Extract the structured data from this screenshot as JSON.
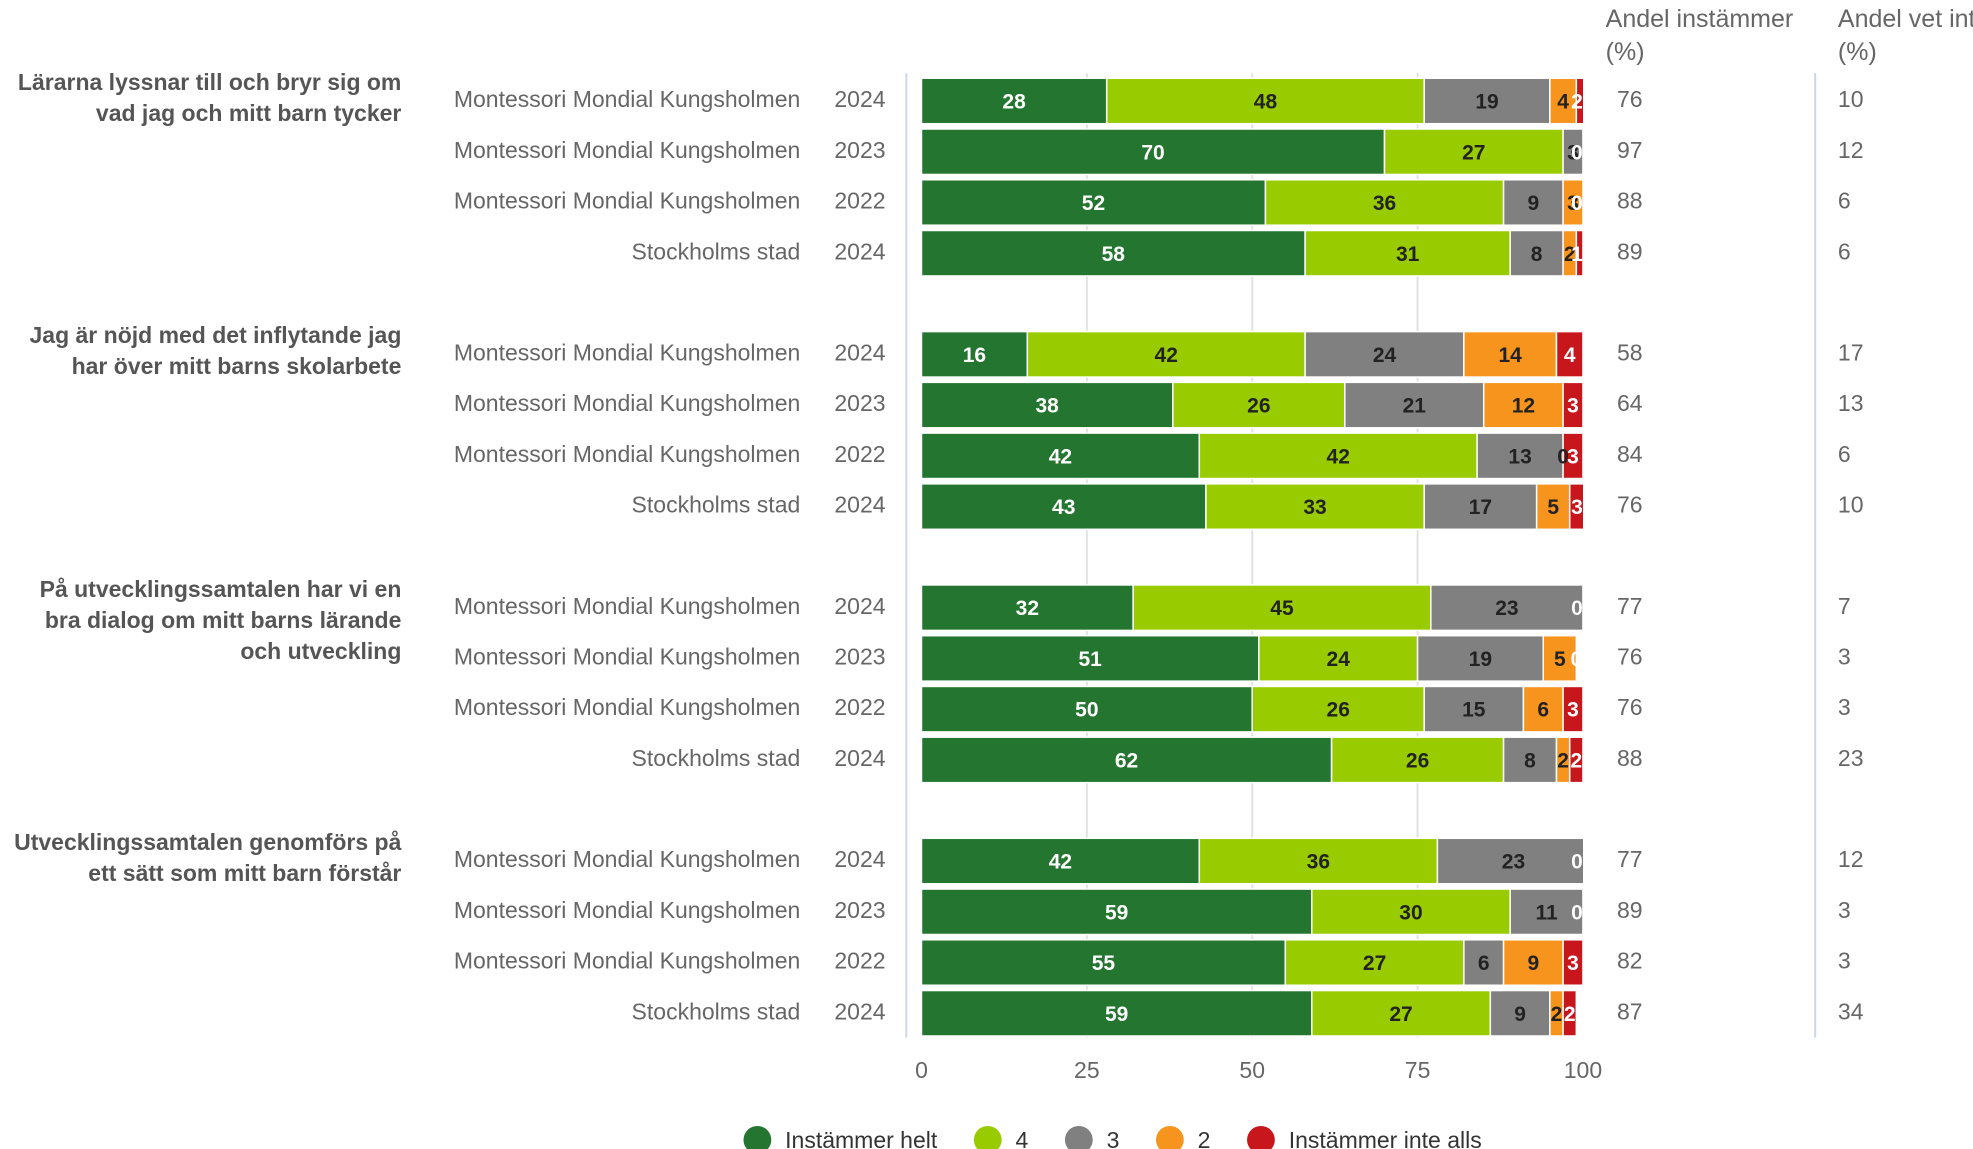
{
  "chart_data": {
    "type": "stacked-bar",
    "groups": [
      {
        "question": "Lärarna lyssnar till och bryr sig om vad jag och mitt barn tycker",
        "rows": [
          {
            "entity": "Montessori Mondial Kungsholmen",
            "year": "2024",
            "agree": 76,
            "dont_know": 10
          },
          {
            "entity": "Montessori Mondial Kungsholmen",
            "year": "2023",
            "agree": 97,
            "dont_know": 12
          },
          {
            "entity": "Montessori Mondial Kungsholmen",
            "year": "2022",
            "agree": 88,
            "dont_know": 6
          },
          {
            "entity": "Stockholms stad",
            "year": "2024",
            "agree": 89,
            "dont_know": 6
          }
        ]
      },
      {
        "question": "Jag är nöjd med det inflytande jag har över mitt barns skolarbete",
        "rows": [
          {
            "entity": "Montessori Mondial Kungsholmen",
            "year": "2024",
            "agree": 58,
            "dont_know": 17
          },
          {
            "entity": "Montessori Mondial Kungsholmen",
            "year": "2023",
            "agree": 64,
            "dont_know": 13
          },
          {
            "entity": "Montessori Mondial Kungsholmen",
            "year": "2022",
            "agree": 84,
            "dont_know": 6
          },
          {
            "entity": "Stockholms stad",
            "year": "2024",
            "agree": 76,
            "dont_know": 10
          }
        ]
      },
      {
        "question": "På utvecklingssamtalen har vi en bra dialog om mitt barns lärande och utveckling",
        "rows": [
          {
            "entity": "Montessori Mondial Kungsholmen",
            "year": "2024",
            "agree": 77,
            "dont_know": 7
          },
          {
            "entity": "Montessori Mondial Kungsholmen",
            "year": "2023",
            "agree": 76,
            "dont_know": 3
          },
          {
            "entity": "Montessori Mondial Kungsholmen",
            "year": "2022",
            "agree": 76,
            "dont_know": 3
          },
          {
            "entity": "Stockholms stad",
            "year": "2024",
            "agree": 88,
            "dont_know": 23
          }
        ]
      },
      {
        "question": "Utvecklingssamtalen genomförs på ett sätt som mitt barn förstår",
        "rows": [
          {
            "entity": "Montessori Mondial Kungsholmen",
            "year": "2024",
            "agree": 77,
            "dont_know": 12
          },
          {
            "entity": "Montessori Mondial Kungsholmen",
            "year": "2023",
            "agree": 89,
            "dont_know": 3
          },
          {
            "entity": "Montessori Mondial Kungsholmen",
            "year": "2022",
            "agree": 82,
            "dont_know": 3
          },
          {
            "entity": "Stockholms stad",
            "year": "2024",
            "agree": 87,
            "dont_know": 34
          }
        ]
      }
    ],
    "agree_header": "Andel instämmer (%)",
    "dont_know_header": "Andel vet inte (%)",
    "series": [
      {
        "name": "Instämmer helt",
        "color": "#247530",
        "values": [
          28,
          70,
          52,
          58,
          16,
          38,
          42,
          43,
          32,
          51,
          50,
          62,
          42,
          59,
          55,
          59
        ]
      },
      {
        "name": "4",
        "color": "#99cc00",
        "values": [
          48,
          27,
          36,
          31,
          42,
          26,
          42,
          33,
          45,
          24,
          26,
          26,
          36,
          30,
          27,
          27
        ]
      },
      {
        "name": "3",
        "color": "#808080",
        "values": [
          19,
          3,
          9,
          8,
          24,
          21,
          13,
          17,
          23,
          19,
          15,
          8,
          23,
          11,
          6,
          9
        ]
      },
      {
        "name": "2",
        "color": "#f7941d",
        "values": [
          4,
          0,
          3,
          2,
          14,
          12,
          0,
          5,
          0,
          5,
          6,
          2,
          0,
          0,
          9,
          2
        ]
      },
      {
        "name": "Instämmer inte alls",
        "color": "#c8161d",
        "values": [
          2,
          0,
          0,
          1,
          4,
          3,
          3,
          3,
          0,
          0,
          3,
          2,
          0,
          0,
          3,
          2
        ]
      }
    ],
    "xlim": [
      0,
      100
    ],
    "xticks": [
      0,
      25,
      50,
      75,
      100
    ],
    "grid": true
  }
}
